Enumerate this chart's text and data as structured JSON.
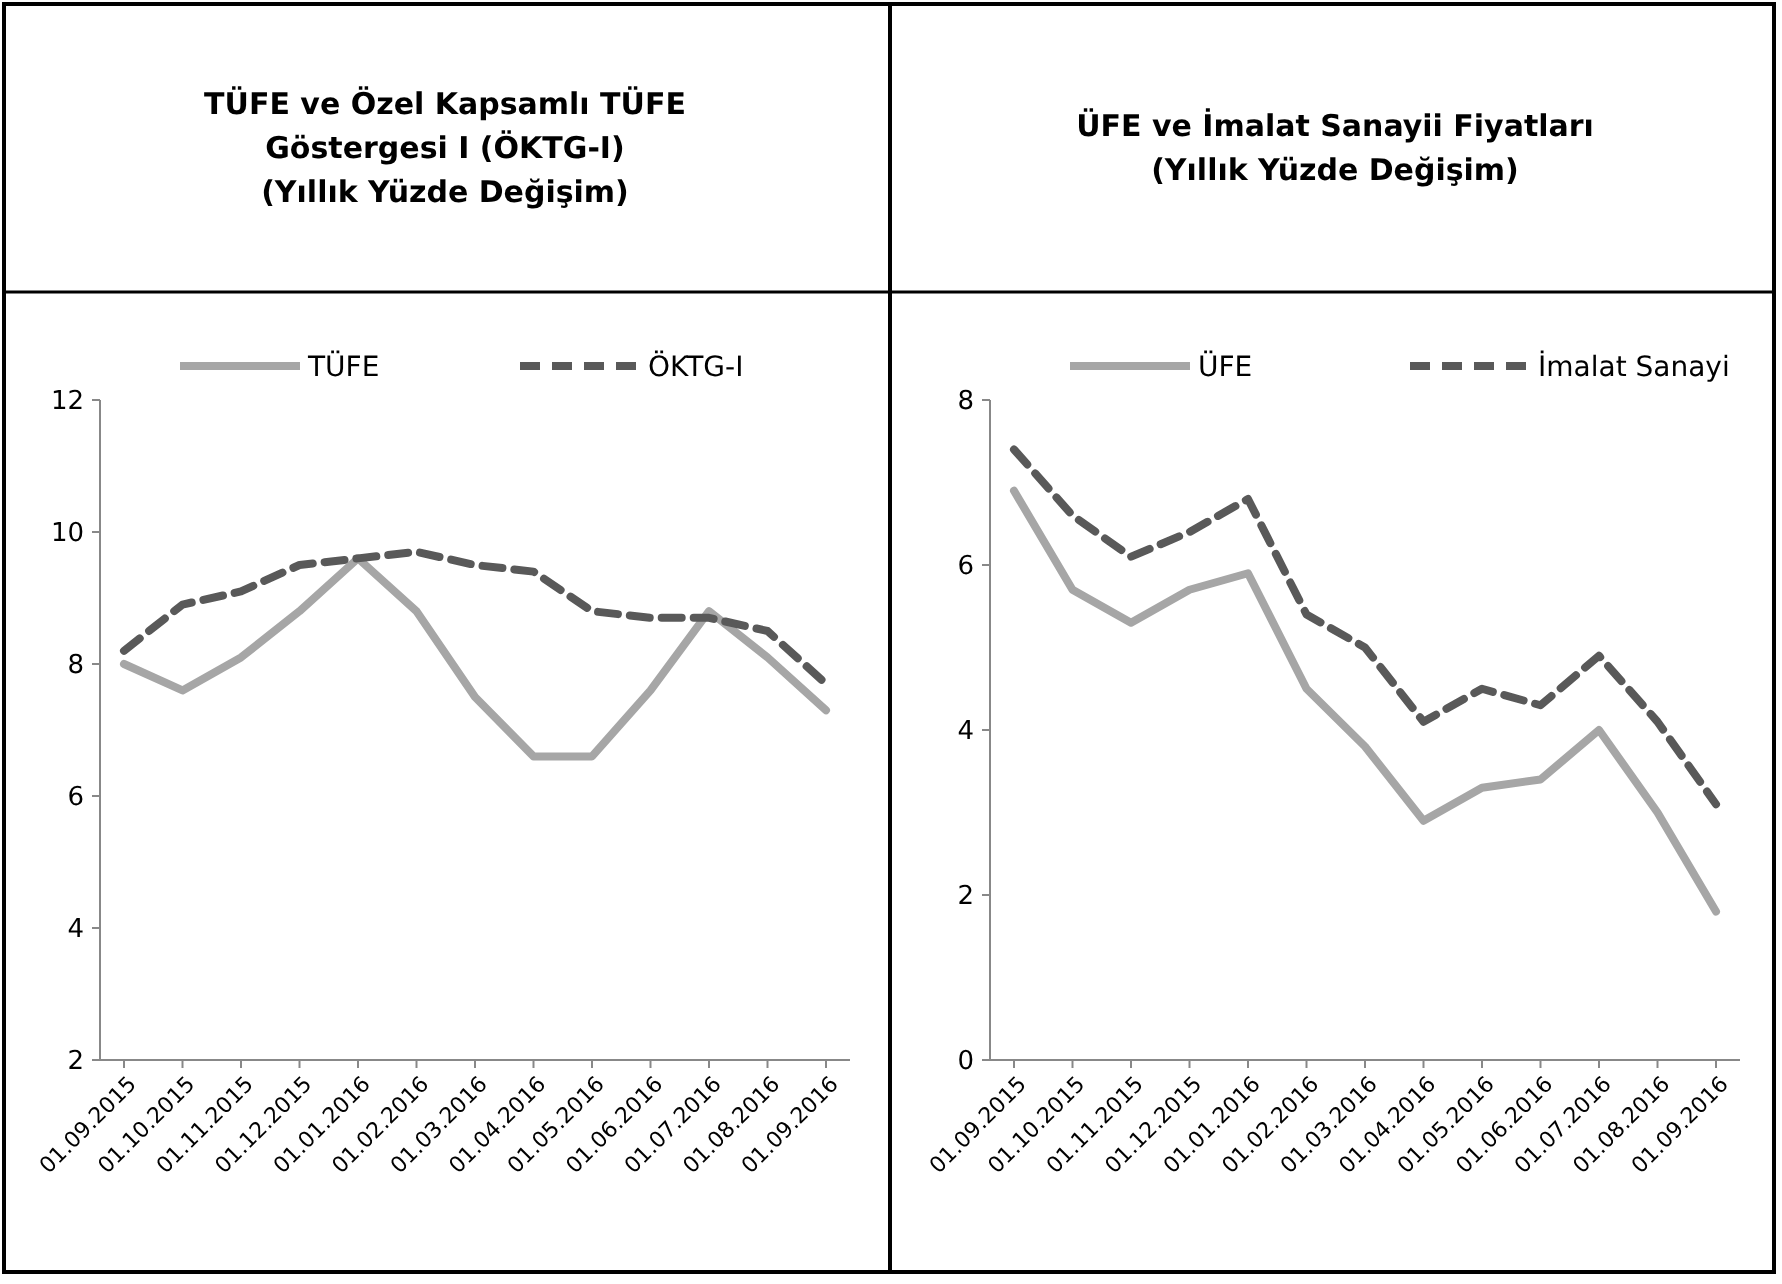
{
  "chart_data": [
    {
      "type": "line",
      "title": "TÜFE ve Özel Kapsamlı TÜFE\nGöstergesi I (ÖKTG-I)\n(Yıllık Yüzde Değişim)",
      "categories": [
        "01.09.2015",
        "01.10.2015",
        "01.11.2015",
        "01.12.2015",
        "01.01.2016",
        "01.02.2016",
        "01.03.2016",
        "01.04.2016",
        "01.05.2016",
        "01.06.2016",
        "01.07.2016",
        "01.08.2016",
        "01.09.2016"
      ],
      "series": [
        {
          "name": "TÜFE",
          "color": "#a6a6a6",
          "line_style": "solid",
          "values": [
            8.0,
            7.6,
            8.1,
            8.8,
            9.6,
            8.8,
            7.5,
            6.6,
            6.6,
            7.6,
            8.8,
            8.1,
            7.3
          ]
        },
        {
          "name": "ÖKTG-I",
          "color": "#595959",
          "line_style": "dashed",
          "values": [
            8.2,
            8.9,
            9.1,
            9.5,
            9.6,
            9.7,
            9.5,
            9.4,
            8.8,
            8.7,
            8.7,
            8.5,
            7.7
          ]
        }
      ],
      "ylim": [
        2,
        12
      ],
      "yticks": [
        2,
        4,
        6,
        8,
        10,
        12
      ],
      "grid": false,
      "legend": "top",
      "marker": "none"
    },
    {
      "type": "line",
      "title": "ÜFE ve İmalat Sanayii Fiyatları\n(Yıllık Yüzde Değişim)",
      "categories": [
        "01.09.2015",
        "01.10.2015",
        "01.11.2015",
        "01.12.2015",
        "01.01.2016",
        "01.02.2016",
        "01.03.2016",
        "01.04.2016",
        "01.05.2016",
        "01.06.2016",
        "01.07.2016",
        "01.08.2016",
        "01.09.2016"
      ],
      "series": [
        {
          "name": "ÜFE",
          "color": "#a6a6a6",
          "line_style": "solid",
          "values": [
            6.9,
            5.7,
            5.3,
            5.7,
            5.9,
            4.5,
            3.8,
            2.9,
            3.3,
            3.4,
            4.0,
            3.0,
            1.8
          ]
        },
        {
          "name": "İmalat Sanayi",
          "color": "#595959",
          "line_style": "dashed",
          "values": [
            7.4,
            6.6,
            6.1,
            6.4,
            6.8,
            5.4,
            5.0,
            4.1,
            4.5,
            4.3,
            4.9,
            4.1,
            3.1
          ]
        }
      ],
      "ylim": [
        0,
        8
      ],
      "yticks": [
        0,
        2,
        4,
        6,
        8
      ],
      "grid": false,
      "legend": "top",
      "marker": "none"
    }
  ]
}
